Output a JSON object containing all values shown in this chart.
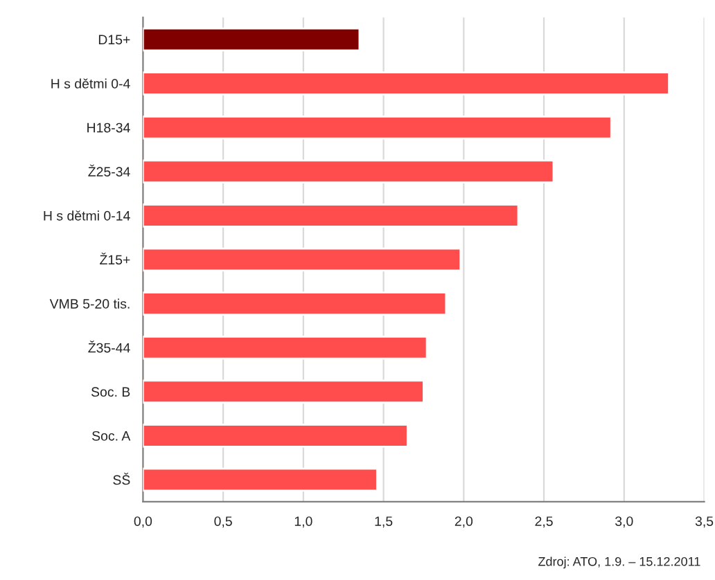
{
  "chart_data": {
    "type": "bar",
    "orientation": "horizontal",
    "categories": [
      "D15+",
      "H s dětmi 0-4",
      "H18-34",
      "Ž25-34",
      "H s dětmi 0-14",
      "Ž15+",
      "VMB 5-20 tis.",
      "Ž35-44",
      "Soc. B",
      "Soc. A",
      "SŠ"
    ],
    "values": [
      1.35,
      3.28,
      2.92,
      2.56,
      2.34,
      1.98,
      1.89,
      1.77,
      1.75,
      1.65,
      1.46
    ],
    "colors": [
      "#800000",
      "#ff4d4d",
      "#ff4d4d",
      "#ff4d4d",
      "#ff4d4d",
      "#ff4d4d",
      "#ff4d4d",
      "#ff4d4d",
      "#ff4d4d",
      "#ff4d4d",
      "#ff4d4d"
    ],
    "xlim": [
      0,
      3.5
    ],
    "xticks": [
      {
        "value": 0,
        "label": "0,0"
      },
      {
        "value": 0.5,
        "label": "0,5"
      },
      {
        "value": 1,
        "label": "1,0"
      },
      {
        "value": 1.5,
        "label": "1,5"
      },
      {
        "value": 2,
        "label": "2,0"
      },
      {
        "value": 2.5,
        "label": "2,5"
      },
      {
        "value": 3,
        "label": "3,0"
      },
      {
        "value": 3.5,
        "label": "3,5"
      }
    ],
    "grid": "x",
    "legend": false,
    "annotations": [
      "Zdroj: ATO, 1.9. – 15.12.2011"
    ]
  }
}
